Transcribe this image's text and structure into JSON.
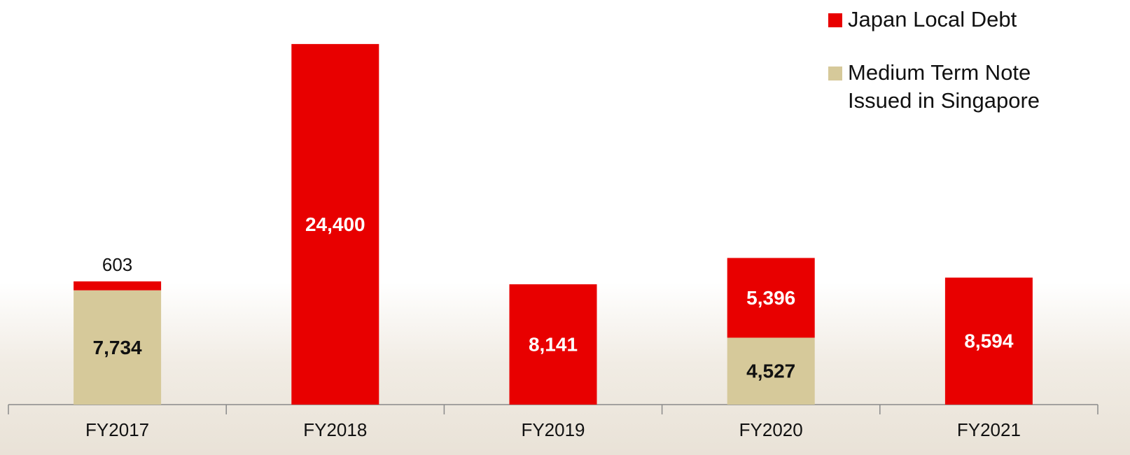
{
  "chart_data": {
    "type": "stacked_bar",
    "categories": [
      "FY2017",
      "FY2018",
      "FY2019",
      "FY2020",
      "FY2021"
    ],
    "series": [
      {
        "name": "Medium Term Note Issued in Singapore",
        "color": "#d6c99a",
        "values": [
          7734,
          null,
          null,
          4527,
          null
        ],
        "value_labels": [
          "7,734",
          null,
          null,
          "4,527",
          null
        ]
      },
      {
        "name": "Japan Local Debt",
        "color": "#e80000",
        "values": [
          603,
          24400,
          8141,
          5396,
          8594
        ],
        "value_labels": [
          "603",
          "24,400",
          "8,141",
          "5,396",
          "8,594"
        ]
      }
    ],
    "ylim": [
      0,
      27000
    ],
    "legend": "top-right"
  }
}
